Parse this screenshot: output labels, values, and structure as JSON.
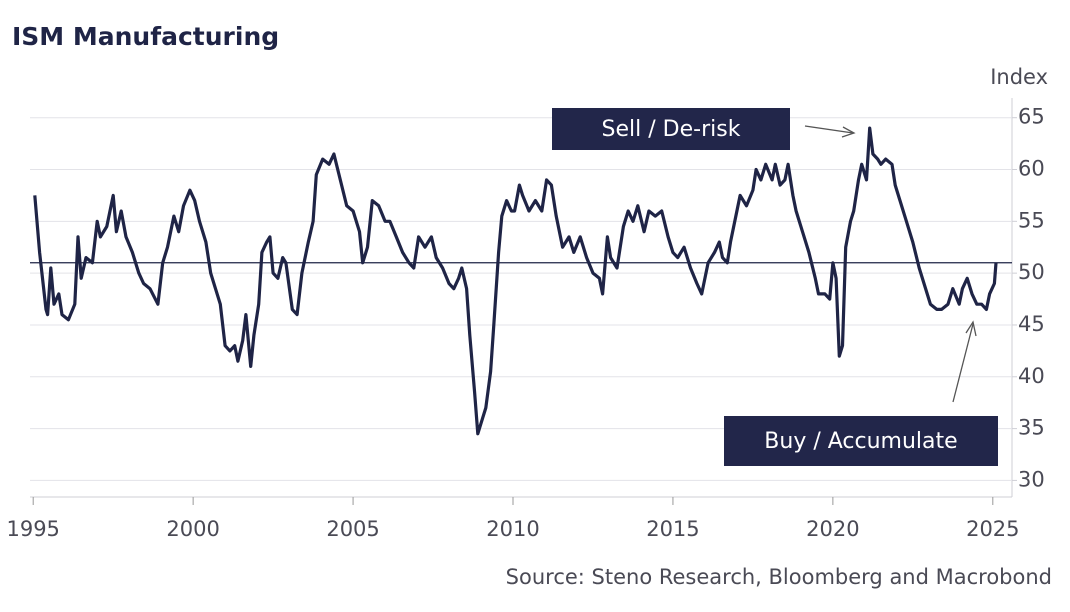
{
  "chart_data": {
    "type": "line",
    "title": "ISM Manufacturing",
    "y_axis_label": "Index",
    "source": "Source: Steno Research, Bloomberg and Macrobond",
    "color": "#1f2446",
    "grid": true,
    "reference_line": 51,
    "annotations": [
      {
        "text": "Sell / De-risk"
      },
      {
        "text": "Buy / Accumulate"
      }
    ],
    "xlim": [
      1994.9,
      2025.6
    ],
    "ylim": [
      28.4,
      66.9
    ],
    "xticks": [
      1995,
      2000,
      2005,
      2010,
      2015,
      2020,
      2025
    ],
    "yticks": [
      30,
      35,
      40,
      45,
      50,
      55,
      60,
      65
    ],
    "x": [
      1995.05,
      1995.2,
      1995.4,
      1995.45,
      1995.55,
      1995.65,
      1995.8,
      1995.9,
      1996.1,
      1996.3,
      1996.4,
      1996.5,
      1996.65,
      1996.85,
      1997.0,
      1997.1,
      1997.3,
      1997.5,
      1997.6,
      1997.75,
      1997.9,
      1998.1,
      1998.3,
      1998.45,
      1998.65,
      1998.9,
      1999.05,
      1999.2,
      1999.4,
      1999.55,
      1999.7,
      1999.9,
      2000.05,
      2000.2,
      2000.4,
      2000.55,
      2000.7,
      2000.85,
      2001.0,
      2001.15,
      2001.3,
      2001.4,
      2001.55,
      2001.65,
      2001.8,
      2001.9,
      2002.05,
      2002.15,
      2002.3,
      2002.4,
      2002.5,
      2002.65,
      2002.8,
      2002.9,
      2003.1,
      2003.25,
      2003.4,
      2003.6,
      2003.75,
      2003.85,
      2004.05,
      2004.25,
      2004.4,
      2004.6,
      2004.8,
      2005.0,
      2005.2,
      2005.3,
      2005.45,
      2005.6,
      2005.8,
      2006.0,
      2006.15,
      2006.35,
      2006.55,
      2006.75,
      2006.9,
      2007.05,
      2007.25,
      2007.45,
      2007.6,
      2007.8,
      2008.0,
      2008.15,
      2008.3,
      2008.4,
      2008.55,
      2008.65,
      2008.8,
      2008.9,
      2009.05,
      2009.15,
      2009.3,
      2009.4,
      2009.55,
      2009.65,
      2009.8,
      2009.95,
      2010.05,
      2010.2,
      2010.3,
      2010.5,
      2010.7,
      2010.9,
      2011.05,
      2011.2,
      2011.35,
      2011.55,
      2011.75,
      2011.9,
      2012.1,
      2012.3,
      2012.5,
      2012.7,
      2012.8,
      2012.95,
      2013.05,
      2013.25,
      2013.45,
      2013.6,
      2013.75,
      2013.9,
      2014.1,
      2014.25,
      2014.45,
      2014.65,
      2014.85,
      2015.0,
      2015.15,
      2015.35,
      2015.55,
      2015.75,
      2015.9,
      2016.1,
      2016.3,
      2016.45,
      2016.55,
      2016.7,
      2016.8,
      2017.0,
      2017.1,
      2017.3,
      2017.5,
      2017.6,
      2017.75,
      2017.9,
      2018.1,
      2018.2,
      2018.35,
      2018.5,
      2018.6,
      2018.75,
      2018.85,
      2019.05,
      2019.25,
      2019.45,
      2019.55,
      2019.75,
      2019.9,
      2020.0,
      2020.1,
      2020.2,
      2020.3,
      2020.4,
      2020.55,
      2020.65,
      2020.8,
      2020.9,
      2021.05,
      2021.15,
      2021.25,
      2021.4,
      2021.5,
      2021.65,
      2021.85,
      2021.95,
      2022.1,
      2022.3,
      2022.5,
      2022.7,
      2022.85,
      2023.05,
      2023.25,
      2023.4,
      2023.6,
      2023.75,
      2023.95,
      2024.05,
      2024.2,
      2024.35,
      2024.5,
      2024.65,
      2024.8,
      2024.9,
      2025.05,
      2025.1
    ],
    "values": [
      57.5,
      52,
      46.5,
      46,
      50.5,
      47,
      48,
      46,
      45.5,
      47,
      53.5,
      49.5,
      51.5,
      51,
      55,
      53.5,
      54.5,
      57.5,
      54,
      56,
      53.5,
      52,
      50,
      49,
      48.5,
      47,
      51,
      52.5,
      55.5,
      54,
      56.5,
      58,
      57,
      55,
      53,
      50,
      48.5,
      47,
      43,
      42.5,
      43,
      41.5,
      43.5,
      46,
      41,
      44,
      47,
      52,
      53,
      53.5,
      50,
      49.5,
      51.5,
      51,
      46.5,
      46,
      50,
      53,
      55,
      59.5,
      61,
      60.5,
      61.5,
      59,
      56.5,
      56,
      54,
      51,
      52.5,
      57,
      56.5,
      55,
      55,
      53.5,
      52,
      51,
      50.5,
      53.5,
      52.5,
      53.5,
      51.5,
      50.5,
      49,
      48.5,
      49.5,
      50.5,
      48.5,
      44,
      38.5,
      34.5,
      36,
      37,
      40.5,
      45,
      52,
      55.5,
      57,
      56,
      56,
      58.5,
      57.5,
      56,
      57,
      56,
      59,
      58.5,
      55.5,
      52.5,
      53.5,
      52,
      53.5,
      51.5,
      50,
      49.5,
      48,
      53.5,
      51.5,
      50.5,
      54.5,
      56,
      55,
      56.5,
      54,
      56,
      55.5,
      56,
      53.5,
      52,
      51.5,
      52.5,
      50.5,
      49,
      48,
      51,
      52,
      53,
      51.5,
      51,
      53,
      56,
      57.5,
      56.5,
      58,
      60,
      59,
      60.5,
      59,
      60.5,
      58.5,
      59,
      60.5,
      57.5,
      56,
      54,
      52,
      49.5,
      48,
      48,
      47.5,
      51,
      49.5,
      42,
      43,
      52.5,
      55,
      56,
      59,
      60.5,
      59,
      64,
      61.5,
      61,
      60.5,
      61,
      60.5,
      58.5,
      57,
      55,
      53,
      50.5,
      49,
      47,
      46.5,
      46.5,
      47,
      48.5,
      47,
      48.5,
      49.5,
      48,
      47,
      47,
      46.5,
      48,
      49,
      51
    ]
  }
}
